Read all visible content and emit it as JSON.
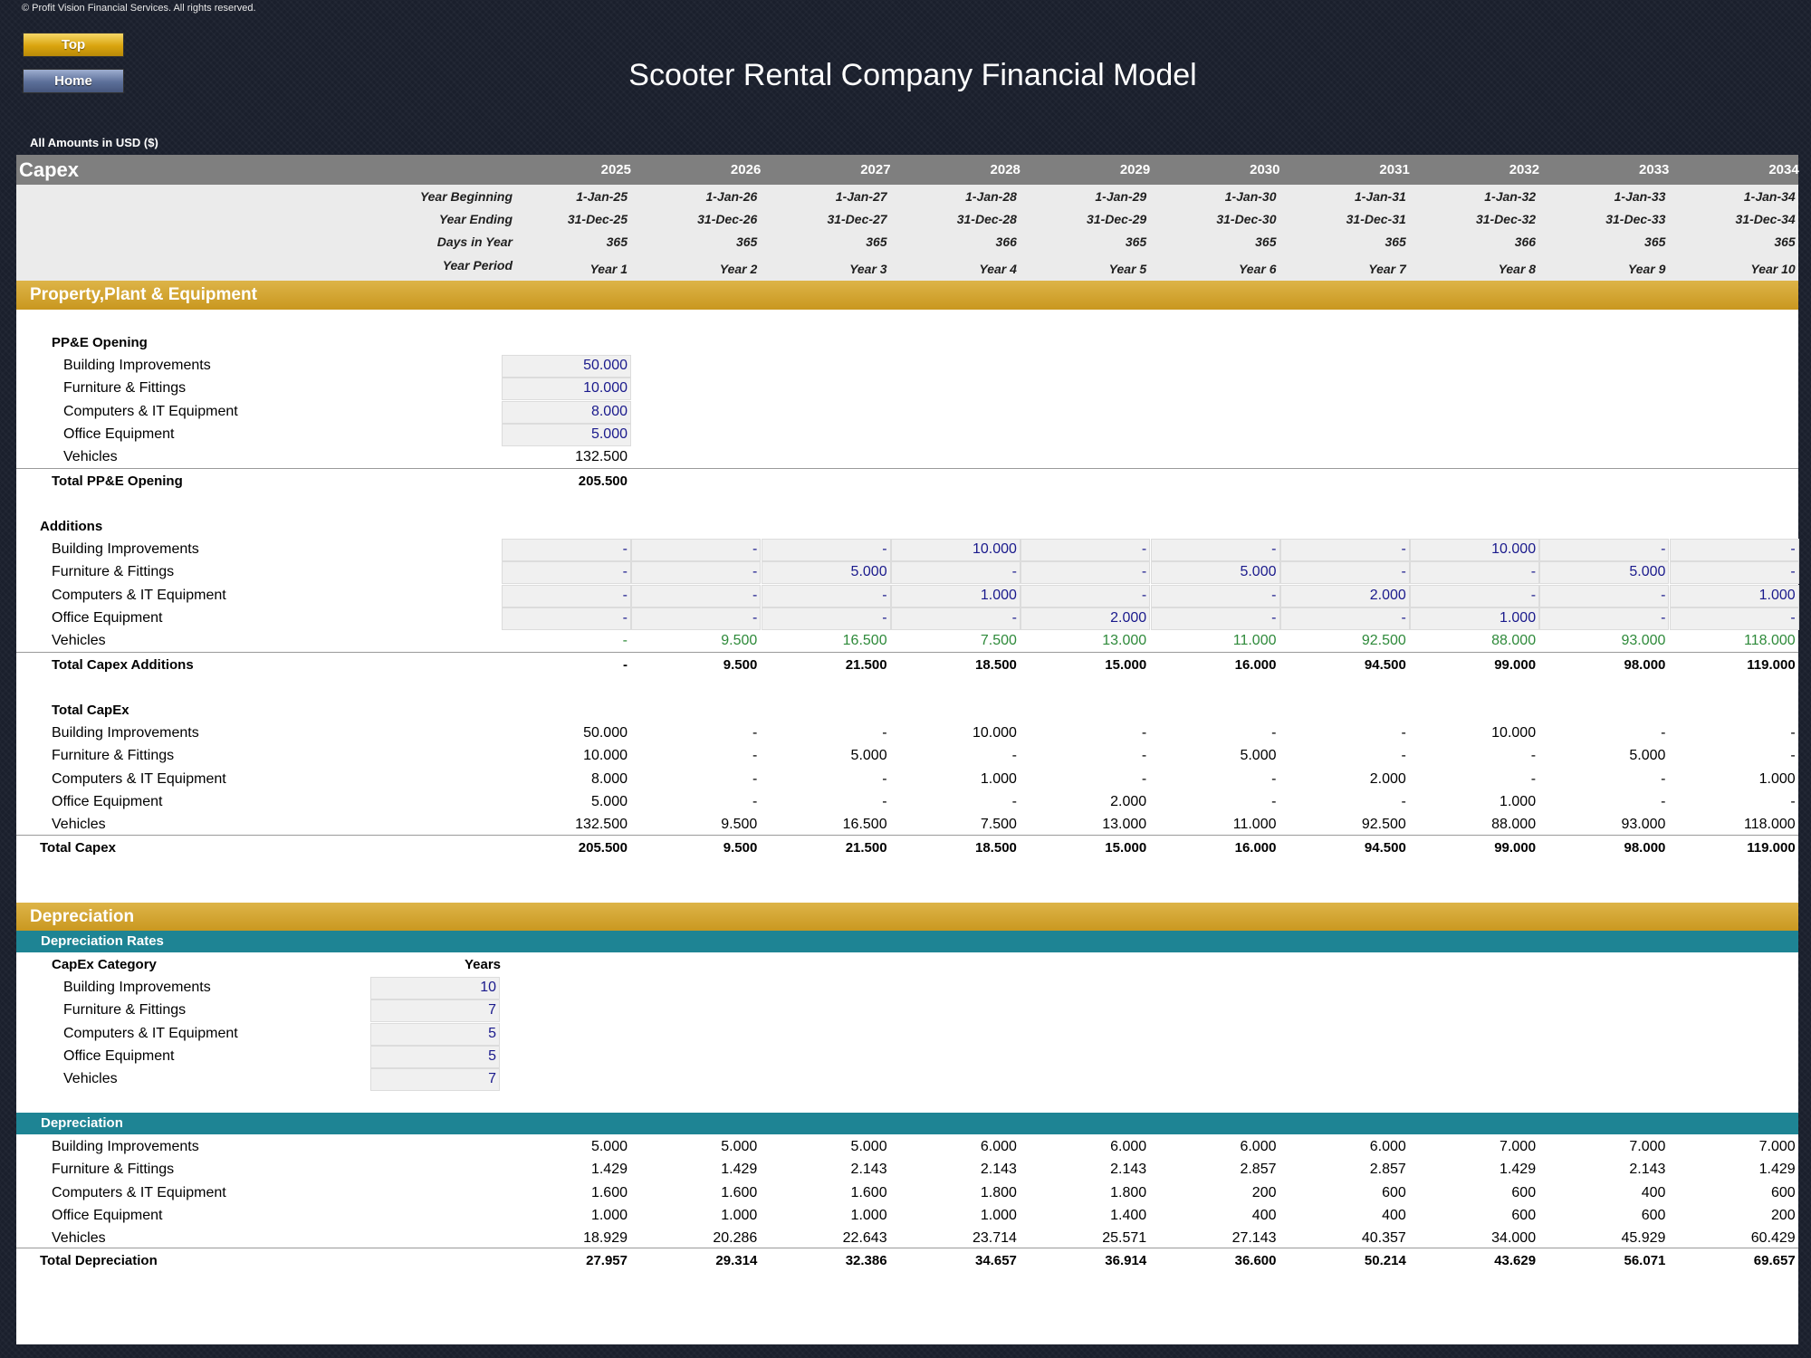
{
  "copyright": "© Profit Vision Financial Services. All rights reserved.",
  "nav": {
    "top": "Top",
    "home": "Home"
  },
  "title": "Scooter Rental Company Financial Model",
  "units": "All Amounts in  USD ($)",
  "section_title": "Capex",
  "years": [
    "2025",
    "2026",
    "2027",
    "2028",
    "2029",
    "2030",
    "2031",
    "2032",
    "2033",
    "2034"
  ],
  "meta": [
    {
      "label": "Year Beginning",
      "values": [
        "1-Jan-25",
        "1-Jan-26",
        "1-Jan-27",
        "1-Jan-28",
        "1-Jan-29",
        "1-Jan-30",
        "1-Jan-31",
        "1-Jan-32",
        "1-Jan-33",
        "1-Jan-34"
      ]
    },
    {
      "label": "Year Ending",
      "values": [
        "31-Dec-25",
        "31-Dec-26",
        "31-Dec-27",
        "31-Dec-28",
        "31-Dec-29",
        "31-Dec-30",
        "31-Dec-31",
        "31-Dec-32",
        "31-Dec-33",
        "31-Dec-34"
      ]
    },
    {
      "label": "Days in Year",
      "values": [
        "365",
        "365",
        "365",
        "366",
        "365",
        "365",
        "365",
        "366",
        "365",
        "365"
      ]
    },
    {
      "label": "Year Period",
      "values": [
        "Year 1",
        "Year 2",
        "Year 3",
        "Year 4",
        "Year 5",
        "Year 6",
        "Year 7",
        "Year 8",
        "Year 9",
        "Year 10"
      ]
    }
  ],
  "ppe": {
    "header": "Property,Plant & Equipment",
    "opening_title": "PP&E Opening",
    "opening": [
      {
        "label": "Building Improvements",
        "value": "50.000"
      },
      {
        "label": "Furniture & Fittings",
        "value": "10.000"
      },
      {
        "label": "Computers & IT Equipment",
        "value": "8.000"
      },
      {
        "label": "Office Equipment",
        "value": "5.000"
      },
      {
        "label": "Vehicles",
        "value": "132.500"
      }
    ],
    "opening_total": {
      "label": "Total PP&E Opening",
      "value": "205.500"
    },
    "additions_title": "Additions",
    "additions": [
      {
        "label": "Building Improvements",
        "values": [
          "-",
          "-",
          "-",
          "10.000",
          "-",
          "-",
          "-",
          "10.000",
          "-",
          "-"
        ]
      },
      {
        "label": "Furniture & Fittings",
        "values": [
          "-",
          "-",
          "5.000",
          "-",
          "-",
          "5.000",
          "-",
          "-",
          "5.000",
          "-"
        ]
      },
      {
        "label": "Computers & IT Equipment",
        "values": [
          "-",
          "-",
          "-",
          "1.000",
          "-",
          "-",
          "2.000",
          "-",
          "-",
          "1.000"
        ]
      },
      {
        "label": "Office Equipment",
        "values": [
          "-",
          "-",
          "-",
          "-",
          "2.000",
          "-",
          "-",
          "1.000",
          "-",
          "-"
        ]
      },
      {
        "label": "Vehicles",
        "values": [
          "-",
          "9.500",
          "16.500",
          "7.500",
          "13.000",
          "11.000",
          "92.500",
          "88.000",
          "93.000",
          "118.000"
        ]
      }
    ],
    "additions_total": {
      "label": "Total Capex Additions",
      "values": [
        "-",
        "9.500",
        "21.500",
        "18.500",
        "15.000",
        "16.000",
        "94.500",
        "99.000",
        "98.000",
        "119.000"
      ]
    },
    "capex_title": "Total CapEx",
    "capex": [
      {
        "label": "Building Improvements",
        "values": [
          "50.000",
          "-",
          "-",
          "10.000",
          "-",
          "-",
          "-",
          "10.000",
          "-",
          "-"
        ]
      },
      {
        "label": "Furniture & Fittings",
        "values": [
          "10.000",
          "-",
          "5.000",
          "-",
          "-",
          "5.000",
          "-",
          "-",
          "5.000",
          "-"
        ]
      },
      {
        "label": "Computers & IT Equipment",
        "values": [
          "8.000",
          "-",
          "-",
          "1.000",
          "-",
          "-",
          "2.000",
          "-",
          "-",
          "1.000"
        ]
      },
      {
        "label": "Office Equipment",
        "values": [
          "5.000",
          "-",
          "-",
          "-",
          "2.000",
          "-",
          "-",
          "1.000",
          "-",
          "-"
        ]
      },
      {
        "label": "Vehicles",
        "values": [
          "132.500",
          "9.500",
          "16.500",
          "7.500",
          "13.000",
          "11.000",
          "92.500",
          "88.000",
          "93.000",
          "118.000"
        ]
      }
    ],
    "capex_total": {
      "label": "Total Capex",
      "values": [
        "205.500",
        "9.500",
        "21.500",
        "18.500",
        "15.000",
        "16.000",
        "94.500",
        "99.000",
        "98.000",
        "119.000"
      ]
    }
  },
  "dep": {
    "header": "Depreciation",
    "rates_header": "Depreciation Rates",
    "rates_col_category": "CapEx Category",
    "rates_col_years": "Years",
    "rates": [
      {
        "label": "Building Improvements",
        "years": "10"
      },
      {
        "label": "Furniture & Fittings",
        "years": "7"
      },
      {
        "label": "Computers & IT Equipment",
        "years": "5"
      },
      {
        "label": "Office Equipment",
        "years": "5"
      },
      {
        "label": "Vehicles",
        "years": "7"
      }
    ],
    "schedule_header": "Depreciation",
    "schedule": [
      {
        "label": "Building Improvements",
        "values": [
          "5.000",
          "5.000",
          "5.000",
          "6.000",
          "6.000",
          "6.000",
          "6.000",
          "7.000",
          "7.000",
          "7.000"
        ]
      },
      {
        "label": "Furniture & Fittings",
        "values": [
          "1.429",
          "1.429",
          "2.143",
          "2.143",
          "2.143",
          "2.857",
          "2.857",
          "1.429",
          "2.143",
          "1.429"
        ]
      },
      {
        "label": "Computers & IT Equipment",
        "values": [
          "1.600",
          "1.600",
          "1.600",
          "1.800",
          "1.800",
          "200",
          "600",
          "600",
          "400",
          "600"
        ]
      },
      {
        "label": "Office Equipment",
        "values": [
          "1.000",
          "1.000",
          "1.000",
          "1.000",
          "1.400",
          "400",
          "400",
          "600",
          "600",
          "200"
        ]
      },
      {
        "label": "Vehicles",
        "values": [
          "18.929",
          "20.286",
          "22.643",
          "23.714",
          "25.571",
          "27.143",
          "40.357",
          "34.000",
          "45.929",
          "60.429"
        ]
      }
    ],
    "schedule_total": {
      "label": "Total Depreciation",
      "values": [
        "27.957",
        "29.314",
        "32.386",
        "34.657",
        "36.914",
        "36.600",
        "50.214",
        "43.629",
        "56.071",
        "69.657"
      ]
    }
  },
  "colors": {
    "gold": "#d4a637",
    "teal": "#1e8494",
    "header_gray": "#7f7f7f",
    "input_blue": "#1a1a8c",
    "link_green": "#2e8a3a"
  }
}
